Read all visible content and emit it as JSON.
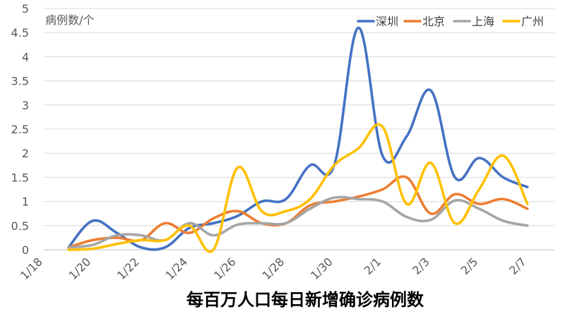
{
  "chart_data": {
    "type": "line",
    "title": "每百万人口每日新增确诊病例数",
    "ylabel": "病例数/个",
    "xlabel": "",
    "ylim": [
      0,
      5
    ],
    "y_ticks": [
      "0",
      "0.5",
      "1",
      "1.5",
      "2",
      "2.5",
      "3",
      "3.5",
      "4",
      "4.5",
      "5"
    ],
    "x_tick_labels": [
      "1/18",
      "1/20",
      "1/22",
      "1/24",
      "1/26",
      "1/28",
      "1/30",
      "2/1",
      "2/3",
      "2/5",
      "2/7"
    ],
    "categories": [
      "1/19",
      "1/20",
      "1/21",
      "1/22",
      "1/23",
      "1/24",
      "1/25",
      "1/26",
      "1/27",
      "1/28",
      "1/29",
      "1/30",
      "1/31",
      "2/1",
      "2/2",
      "2/3",
      "2/4",
      "2/5",
      "2/6",
      "2/7"
    ],
    "grid": true,
    "legend_position": "top-right",
    "series": [
      {
        "name": "深圳",
        "color": "#4472C4",
        "values": [
          0.05,
          0.6,
          0.35,
          0.05,
          0.05,
          0.45,
          0.55,
          0.7,
          1.0,
          1.05,
          1.75,
          1.75,
          4.6,
          1.95,
          2.35,
          3.3,
          1.5,
          1.9,
          1.5,
          1.3
        ]
      },
      {
        "name": "北京",
        "color": "#ED7D31",
        "values": [
          0.05,
          0.2,
          0.25,
          0.2,
          0.55,
          0.35,
          0.65,
          0.8,
          0.55,
          0.55,
          0.92,
          1.0,
          1.1,
          1.25,
          1.5,
          0.75,
          1.15,
          0.95,
          1.05,
          0.85
        ]
      },
      {
        "name": "上海",
        "color": "#A5A5A5",
        "values": [
          0.05,
          0.1,
          0.3,
          0.3,
          0.2,
          0.55,
          0.3,
          0.52,
          0.55,
          0.55,
          0.85,
          1.08,
          1.05,
          1.0,
          0.68,
          0.62,
          1.02,
          0.85,
          0.6,
          0.5
        ]
      },
      {
        "name": "广州",
        "color": "#FFC000",
        "values": [
          0.0,
          0.02,
          0.12,
          0.2,
          0.2,
          0.5,
          0.0,
          1.7,
          0.8,
          0.8,
          1.05,
          1.75,
          2.1,
          2.55,
          0.95,
          1.8,
          0.55,
          1.25,
          1.95,
          0.95
        ]
      }
    ]
  }
}
